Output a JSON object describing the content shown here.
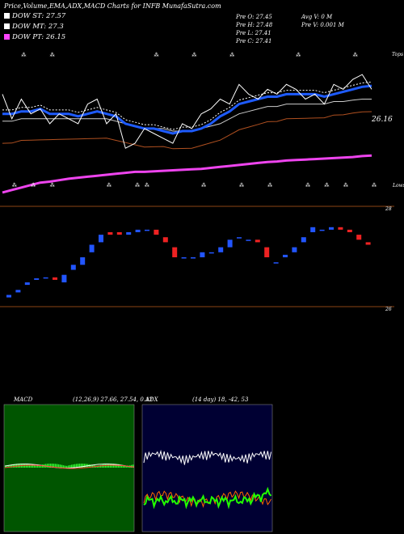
{
  "header": {
    "title": "Price,Volume,EMA,ADX,MACD Charts for INFB MunafaSutra.com",
    "legend": [
      {
        "label": "DOW ST: 27.57",
        "color": "#ffffff"
      },
      {
        "label": "DOW MT: 27.3",
        "color": "#ffffff"
      },
      {
        "label": "DOW PT: 26.15",
        "color": "#ff44ff"
      }
    ],
    "ohlc": {
      "open": "Pre  O: 27.45",
      "high": "Pre  H: 27.48",
      "low": "Pre  L: 27.41",
      "close": "Pre  C: 27.41"
    },
    "volume": {
      "avg": "Avg V: 0  M",
      "pre": "Pre  V: 0.001 M"
    }
  },
  "colors": {
    "background": "#000000",
    "price_line": "#ffffff",
    "ema_short": "#1e5bff",
    "ema_pt": "#ee44ee",
    "ema_long": "#b05020",
    "candle_up": "#2255ff",
    "candle_down": "#ee2222",
    "separator": "#8b4513",
    "macd_bg": "#005500",
    "adx_bg": "#000033",
    "adx_di_plus": "#22ff00",
    "adx_di_minus": "#ff6600"
  },
  "price_panel": {
    "top_label": "Tops",
    "bottom_label": "Lows",
    "price_tag": "26.16"
  },
  "candle_panel": {
    "level_high": "28",
    "level_low": "26"
  },
  "macd": {
    "label": "MACD",
    "params": "(12,26,9) 27.66,  27.54,  0.12"
  },
  "adx": {
    "label": "ADX",
    "params": "(14  day) 18,  -42,  53"
  },
  "chart_data": [
    {
      "type": "line",
      "name": "price-ema",
      "x": [
        1,
        2,
        3,
        4,
        5,
        6,
        7,
        8,
        9,
        10,
        11,
        12,
        13,
        14,
        15,
        16,
        17,
        18,
        19,
        20,
        21,
        22,
        23,
        24,
        25,
        26,
        27,
        28,
        29,
        30,
        31,
        32,
        33,
        34,
        35,
        36,
        37,
        38,
        39,
        40
      ],
      "series": [
        {
          "name": "Price",
          "values": [
            27.4,
            26.9,
            27.3,
            27.0,
            27.1,
            26.8,
            27.0,
            26.9,
            26.8,
            27.2,
            27.3,
            26.8,
            27.0,
            26.3,
            26.4,
            26.7,
            26.6,
            26.5,
            26.4,
            26.8,
            26.7,
            27.0,
            27.1,
            27.3,
            27.2,
            27.6,
            27.4,
            27.3,
            27.5,
            27.4,
            27.6,
            27.5,
            27.3,
            27.4,
            27.2,
            27.6,
            27.5,
            27.7,
            27.8,
            27.5
          ]
        },
        {
          "name": "DOW ST",
          "values": [
            27.0,
            27.0,
            27.05,
            27.05,
            27.1,
            27.0,
            27.0,
            27.0,
            26.95,
            27.0,
            27.05,
            27.0,
            26.95,
            26.8,
            26.75,
            26.7,
            26.7,
            26.65,
            26.6,
            26.65,
            26.65,
            26.7,
            26.8,
            26.95,
            27.05,
            27.2,
            27.25,
            27.3,
            27.35,
            27.35,
            27.4,
            27.4,
            27.4,
            27.4,
            27.35,
            27.4,
            27.45,
            27.5,
            27.55,
            27.57
          ]
        },
        {
          "name": "DOW MT",
          "values": [
            26.85,
            26.85,
            26.9,
            26.9,
            26.9,
            26.9,
            26.9,
            26.9,
            26.9,
            26.9,
            26.9,
            26.9,
            26.85,
            26.8,
            26.75,
            26.7,
            26.7,
            26.7,
            26.65,
            26.65,
            26.65,
            26.7,
            26.75,
            26.8,
            26.9,
            27.0,
            27.05,
            27.1,
            27.15,
            27.15,
            27.2,
            27.2,
            27.2,
            27.2,
            27.2,
            27.25,
            27.25,
            27.28,
            27.3,
            27.3
          ]
        },
        {
          "name": "DOW PT",
          "values": [
            25.4,
            25.45,
            25.5,
            25.55,
            25.6,
            25.62,
            25.65,
            25.68,
            25.7,
            25.72,
            25.74,
            25.76,
            25.78,
            25.8,
            25.82,
            25.82,
            25.83,
            25.84,
            25.85,
            25.86,
            25.87,
            25.88,
            25.9,
            25.92,
            25.94,
            25.96,
            25.98,
            26.0,
            26.02,
            26.03,
            26.05,
            26.06,
            26.07,
            26.08,
            26.09,
            26.1,
            26.11,
            26.12,
            26.14,
            26.15
          ]
        }
      ]
    },
    {
      "type": "bar",
      "name": "daily-candles",
      "x": [
        1,
        2,
        3,
        4,
        5,
        6,
        7,
        8,
        9,
        10,
        11,
        12,
        13,
        14,
        15,
        16,
        17,
        18,
        19,
        20,
        21,
        22,
        23,
        24,
        25,
        26,
        27,
        28,
        29,
        30,
        31,
        32,
        33,
        34,
        35,
        36,
        37,
        38,
        39,
        40
      ],
      "series": [
        {
          "name": "Open",
          "values": [
            26.2,
            26.3,
            26.45,
            26.55,
            26.6,
            26.6,
            26.5,
            26.75,
            26.85,
            27.1,
            27.3,
            27.5,
            27.5,
            27.45,
            27.5,
            27.55,
            27.55,
            27.4,
            27.2,
            27.0,
            27.0,
            27.0,
            27.1,
            27.1,
            27.2,
            27.4,
            27.35,
            27.35,
            27.2,
            26.9,
            27.0,
            27.1,
            27.3,
            27.5,
            27.55,
            27.55,
            27.6,
            27.55,
            27.45,
            27.3
          ]
        },
        {
          "name": "Close",
          "values": [
            26.25,
            26.35,
            26.5,
            26.58,
            26.6,
            26.55,
            26.65,
            26.85,
            27.0,
            27.25,
            27.45,
            27.45,
            27.45,
            27.5,
            27.55,
            27.55,
            27.45,
            27.3,
            27.0,
            27.0,
            27.0,
            27.1,
            27.1,
            27.2,
            27.35,
            27.4,
            27.35,
            27.3,
            27.0,
            26.9,
            27.05,
            27.2,
            27.4,
            27.6,
            27.55,
            27.6,
            27.55,
            27.5,
            27.35,
            27.25
          ]
        }
      ],
      "ylim": [
        26,
        28
      ]
    }
  ]
}
